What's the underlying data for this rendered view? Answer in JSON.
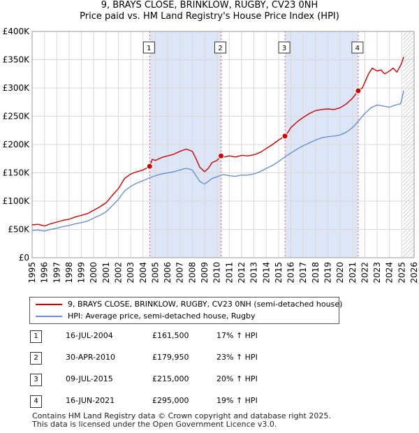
{
  "chart_data": {
    "type": "line",
    "title": "9, BRAYS CLOSE, BRINKLOW, RUGBY, CV23 0NH",
    "subtitle": "Price paid vs. HM Land Registry's House Price Index (HPI)",
    "xlim": [
      1995,
      2026
    ],
    "ylim": [
      0,
      400000
    ],
    "y_ticks": [
      0,
      50000,
      100000,
      150000,
      200000,
      250000,
      300000,
      350000,
      400000
    ],
    "y_tick_labels": [
      "£0",
      "£50K",
      "£100K",
      "£150K",
      "£200K",
      "£250K",
      "£300K",
      "£350K",
      "£400K"
    ],
    "x_ticks": [
      1995,
      1996,
      1997,
      1998,
      1999,
      2000,
      2001,
      2002,
      2003,
      2004,
      2005,
      2006,
      2007,
      2008,
      2009,
      2010,
      2011,
      2012,
      2013,
      2014,
      2015,
      2016,
      2017,
      2018,
      2019,
      2020,
      2021,
      2022,
      2023,
      2024,
      2025,
      2026
    ],
    "x_tick_labels": [
      "1995",
      "1996",
      "1997",
      "1998",
      "1999",
      "2000",
      "2001",
      "2002",
      "2003",
      "2004",
      "2005",
      "2006",
      "2007",
      "2008",
      "2009",
      "2010",
      "2011",
      "2012",
      "2013",
      "2014",
      "2015",
      "2016",
      "2017",
      "2018",
      "2019",
      "2020",
      "2021",
      "2022",
      "2023",
      "2024",
      "2025",
      "2026"
    ],
    "grid": true,
    "projection_start": 2025.1,
    "shaded_periods": [
      [
        2004.54,
        2010.33
      ],
      [
        2015.52,
        2021.46
      ]
    ],
    "series": [
      {
        "name": "9, BRAYS CLOSE, BRINKLOW, RUGBY, CV23 0NH (semi-detached house)",
        "color": "#cc0000",
        "x": [
          1995,
          1995.5,
          1996,
          1996.5,
          1997,
          1997.5,
          1998,
          1998.5,
          1999,
          1999.5,
          2000,
          2000.5,
          2001,
          2001.5,
          2002,
          2002.5,
          2003,
          2003.5,
          2004,
          2004.54,
          2004.75,
          2005,
          2005.5,
          2006,
          2006.5,
          2007,
          2007.5,
          2008,
          2008.3,
          2008.6,
          2009,
          2009.3,
          2009.6,
          2010,
          2010.33,
          2010.6,
          2011,
          2011.5,
          2012,
          2012.5,
          2013,
          2013.5,
          2014,
          2014.5,
          2015,
          2015.52,
          2015.8,
          2016,
          2016.5,
          2017,
          2017.5,
          2018,
          2018.5,
          2019,
          2019.5,
          2020,
          2020.5,
          2021,
          2021.46,
          2021.8,
          2022,
          2022.3,
          2022.6,
          2023,
          2023.3,
          2023.6,
          2024,
          2024.3,
          2024.6,
          2024.9,
          2025,
          2025.15
        ],
        "y": [
          58000,
          59000,
          56000,
          60000,
          63000,
          66000,
          68000,
          72000,
          75000,
          78000,
          84000,
          90000,
          97000,
          110000,
          122000,
          140000,
          148000,
          152000,
          155000,
          161500,
          174000,
          172000,
          177000,
          180000,
          183000,
          188000,
          192000,
          188000,
          175000,
          160000,
          152000,
          158000,
          168000,
          172000,
          179950,
          178000,
          180000,
          178000,
          181000,
          180000,
          182000,
          186000,
          193000,
          200000,
          208000,
          215000,
          223000,
          230000,
          240000,
          248000,
          255000,
          260000,
          262000,
          263000,
          262000,
          265000,
          272000,
          282000,
          295000,
          300000,
          310000,
          325000,
          335000,
          330000,
          332000,
          325000,
          330000,
          335000,
          328000,
          340000,
          345000,
          355000
        ]
      },
      {
        "name": "HPI: Average price, semi-detached house, Rugby",
        "color": "#6a8fd0",
        "x": [
          1995,
          1995.5,
          1996,
          1996.5,
          1997,
          1997.5,
          1998,
          1998.5,
          1999,
          1999.5,
          2000,
          2000.5,
          2001,
          2001.5,
          2002,
          2002.5,
          2003,
          2003.5,
          2004,
          2004.5,
          2005,
          2005.5,
          2006,
          2006.5,
          2007,
          2007.5,
          2008,
          2008.3,
          2008.6,
          2009,
          2009.3,
          2009.6,
          2010,
          2010.5,
          2011,
          2011.5,
          2012,
          2012.5,
          2013,
          2013.5,
          2014,
          2014.5,
          2015,
          2015.5,
          2016,
          2016.5,
          2017,
          2017.5,
          2018,
          2018.5,
          2019,
          2019.5,
          2020,
          2020.5,
          2021,
          2021.5,
          2022,
          2022.5,
          2023,
          2023.5,
          2024,
          2024.5,
          2024.9,
          2025,
          2025.15
        ],
        "y": [
          48000,
          49000,
          47000,
          50000,
          52000,
          55000,
          57000,
          60000,
          62000,
          65000,
          70000,
          75000,
          81000,
          92000,
          103000,
          118000,
          126000,
          132000,
          136000,
          141000,
          145000,
          148000,
          150000,
          152000,
          155000,
          158000,
          155000,
          145000,
          135000,
          130000,
          135000,
          140000,
          143000,
          147000,
          145000,
          144000,
          146000,
          146000,
          148000,
          152000,
          158000,
          163000,
          170000,
          178000,
          185000,
          192000,
          198000,
          203000,
          208000,
          212000,
          214000,
          215000,
          217000,
          222000,
          230000,
          242000,
          255000,
          265000,
          270000,
          268000,
          266000,
          270000,
          272000,
          280000,
          295000
        ]
      }
    ],
    "sales": [
      {
        "marker": "1",
        "x": 2004.54,
        "y": 161500
      },
      {
        "marker": "2",
        "x": 2010.33,
        "y": 179950
      },
      {
        "marker": "3",
        "x": 2015.52,
        "y": 215000
      },
      {
        "marker": "4",
        "x": 2021.46,
        "y": 295000
      }
    ]
  },
  "header": {
    "title": "9, BRAYS CLOSE, BRINKLOW, RUGBY, CV23 0NH",
    "subtitle": "Price paid vs. HM Land Registry's House Price Index (HPI)"
  },
  "legend": {
    "property_label": "9, BRAYS CLOSE, BRINKLOW, RUGBY, CV23 0NH (semi-detached house)",
    "property_color": "#cc0000",
    "hpi_label": "HPI: Average price, semi-detached house, Rugby",
    "hpi_color": "#6a8fd0"
  },
  "sales_table": [
    {
      "num": "1",
      "date": "16-JUL-2004",
      "price": "£161,500",
      "hpi": "17% ↑ HPI"
    },
    {
      "num": "2",
      "date": "30-APR-2010",
      "price": "£179,950",
      "hpi": "23% ↑ HPI"
    },
    {
      "num": "3",
      "date": "09-JUL-2015",
      "price": "£215,000",
      "hpi": "20% ↑ HPI"
    },
    {
      "num": "4",
      "date": "16-JUN-2021",
      "price": "£295,000",
      "hpi": "19% ↑ HPI"
    }
  ],
  "footer": {
    "line1": "Contains HM Land Registry data © Crown copyright and database right 2025.",
    "line2": "This data is licensed under the Open Government Licence v3.0."
  }
}
